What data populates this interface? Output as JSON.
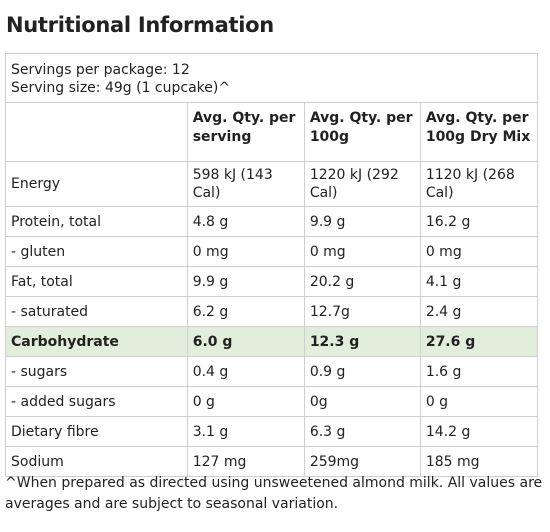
{
  "title": "Nutritional Information",
  "servings": {
    "per_package": "Servings per package: 12",
    "serving_size": "Serving size: 49g (1 cupcake)^"
  },
  "headers": [
    "",
    "Avg. Qty. per serving",
    "Avg. Qty. per 100g",
    "Avg. Qty. per 100g Dry Mix"
  ],
  "rows": [
    {
      "label": "Energy",
      "serving": "598 kJ (143 Cal)",
      "per100g": "1220 kJ (292 Cal)",
      "dry_mix": "1120 kJ (268 Cal)"
    },
    {
      "label": "Protein, total",
      "serving": "4.8 g",
      "per100g": "9.9 g",
      "dry_mix": "16.2 g"
    },
    {
      "label": "- gluten",
      "serving": "0 mg",
      "per100g": "0 mg",
      "dry_mix": "0 mg"
    },
    {
      "label": "Fat, total",
      "serving": "9.9 g",
      "per100g": "20.2 g",
      "dry_mix": "4.1 g"
    },
    {
      "label": "- saturated",
      "serving": "6.2 g",
      "per100g": "12.7g",
      "dry_mix": "2.4 g"
    },
    {
      "label": "Carbohydrate",
      "serving": "6.0 g",
      "per100g": "12.3 g",
      "dry_mix": "27.6 g"
    },
    {
      "label": "- sugars",
      "serving": "0.4 g",
      "per100g": "0.9 g",
      "dry_mix": "1.6 g"
    },
    {
      "label": "- added sugars",
      "serving": "0 g",
      "per100g": "0g",
      "dry_mix": "0 g"
    },
    {
      "label": "Dietary fibre",
      "serving": "3.1 g",
      "per100g": "6.3 g",
      "dry_mix": "14.2 g"
    },
    {
      "label": "Sodium",
      "serving": "127 mg",
      "per100g": "259mg",
      "dry_mix": "185 mg"
    }
  ],
  "footnote": "^When prepared as directed using unsweetened almond milk. All values are averages and are subject to seasonal variation.",
  "colors": {
    "highlight_row": "#e2eedc",
    "border": "#cfcfcf",
    "text": "#222222"
  }
}
